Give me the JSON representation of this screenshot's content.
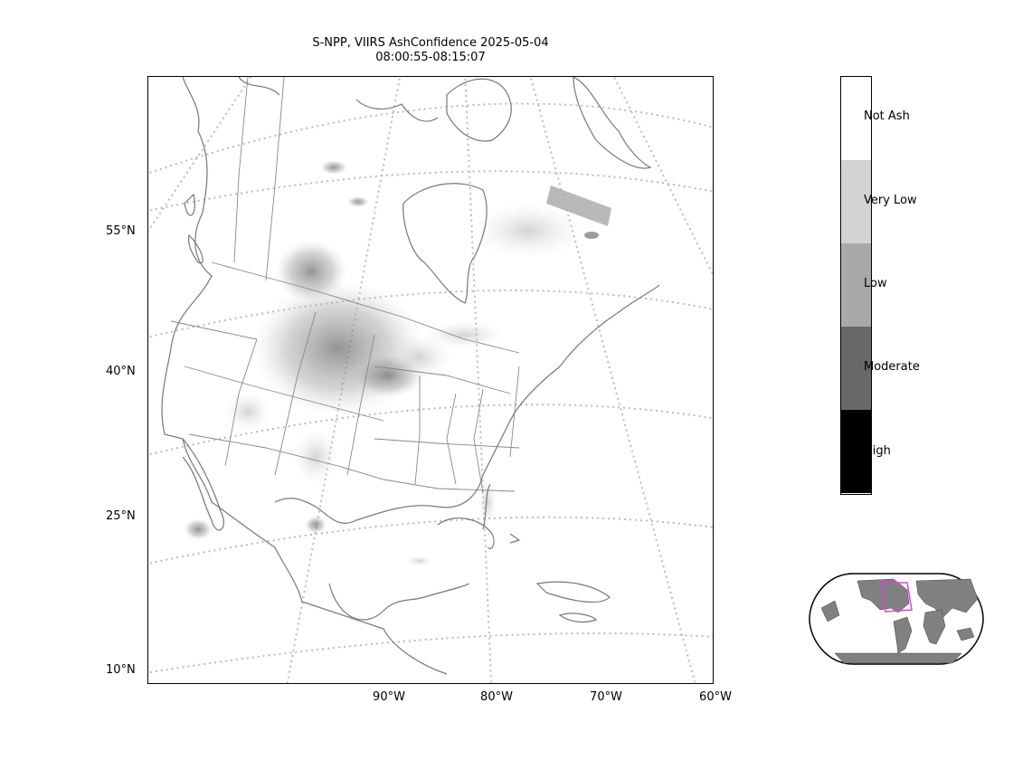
{
  "title": {
    "line1": "S-NPP, VIIRS AshConfidence 2025-05-04",
    "line2": "08:00:55-08:15:07"
  },
  "axes": {
    "lat_ticks": [
      "55°N",
      "40°N",
      "25°N",
      "10°N"
    ],
    "lon_ticks": [
      "90°W",
      "80°W",
      "70°W",
      "60°W"
    ]
  },
  "colorbar": {
    "categories": [
      {
        "label": "Not Ash",
        "color": "#ffffff"
      },
      {
        "label": "Very Low",
        "color": "#d3d3d3"
      },
      {
        "label": "Low",
        "color": "#a9a9a9"
      },
      {
        "label": "Moderate",
        "color": "#696969"
      },
      {
        "label": "High",
        "color": "#000000"
      }
    ]
  },
  "colors": {
    "coastline": "#777777",
    "graticule": "#bbbbbb",
    "inset_land": "#808080",
    "inset_extent_box": "#e040e0"
  }
}
